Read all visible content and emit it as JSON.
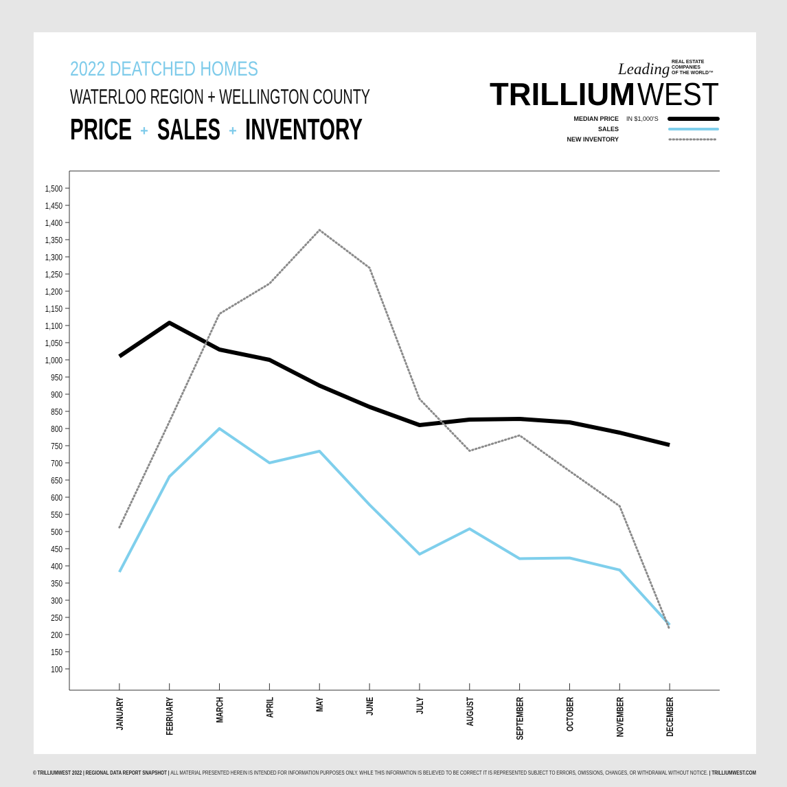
{
  "chart_data": {
    "type": "line",
    "title": "2022 DEATCHED HOMES",
    "subtitle": "WATERLOO REGION + WELLINGTON COUNTY",
    "headline": [
      "PRICE",
      "SALES",
      "INVENTORY"
    ],
    "headline_separator": "+",
    "logo": {
      "leading": "Leading",
      "tagline": [
        "REAL ESTATE",
        "COMPANIES",
        "OF THE WORLD™"
      ],
      "brand_bold": "TRILLIUM",
      "brand_light": "WEST"
    },
    "legend_note": "IN $1,000'S",
    "categories": [
      "JANUARY",
      "FEBRUARY",
      "MARCH",
      "APRIL",
      "MAY",
      "JUNE",
      "JULY",
      "AUGUST",
      "SEPTEMBER",
      "OCTOBER",
      "NOVEMBER",
      "DECEMBER"
    ],
    "series": [
      {
        "name": "MEDIAN PRICE",
        "color": "#000000",
        "style": "solid",
        "width": 6,
        "values": [
          1010,
          1108,
          1030,
          1000,
          925,
          863,
          810,
          826,
          828,
          818,
          788,
          752
        ]
      },
      {
        "name": "SALES",
        "color": "#7fcfec",
        "style": "solid",
        "width": 4,
        "values": [
          382,
          660,
          800,
          700,
          734,
          578,
          434,
          508,
          421,
          423,
          388,
          228
        ]
      },
      {
        "name": "NEW INVENTORY",
        "color": "#8a8a8a",
        "style": "dotted",
        "width": 3,
        "values": [
          512,
          820,
          1134,
          1222,
          1378,
          1268,
          886,
          735,
          780,
          676,
          574,
          214
        ]
      }
    ],
    "ylim": [
      38,
      1550
    ],
    "yticks": [
      100,
      150,
      200,
      250,
      300,
      350,
      400,
      450,
      500,
      550,
      600,
      650,
      700,
      750,
      800,
      850,
      900,
      950,
      {
        "value": 1000,
        "label": "1,000"
      },
      {
        "value": 1050,
        "label": "1,050"
      },
      {
        "value": 1100,
        "label": "1,100"
      },
      {
        "value": 1150,
        "label": "1,150"
      },
      {
        "value": 1200,
        "label": "1,200"
      },
      {
        "value": 1250,
        "label": "1,250"
      },
      {
        "value": 1300,
        "label": "1,300"
      },
      {
        "value": 1350,
        "label": "1,350"
      },
      {
        "value": 1400,
        "label": "1,400"
      },
      {
        "value": 1450,
        "label": "1,450"
      },
      {
        "value": 1500,
        "label": "1,500"
      }
    ],
    "grid": false,
    "legend": "top-right",
    "footer": [
      "© TRILLIUMWEST 2022",
      "REGIONAL DATA REPORT SNAPSHOT",
      "ALL MATERIAL PRESENTED HEREIN IS INTENDED FOR INFORMATION PURPOSES ONLY. WHILE THIS INFORMATION IS BELIEVED TO BE CORRECT IT IS REPRESENTED SUBJECT TO ERRORS, OMISSIONS, CHANGES, OR WITHDRAWAL WITHOUT NOTICE.",
      "TRILLIUMWEST.COM"
    ],
    "footer_separator": "|"
  }
}
